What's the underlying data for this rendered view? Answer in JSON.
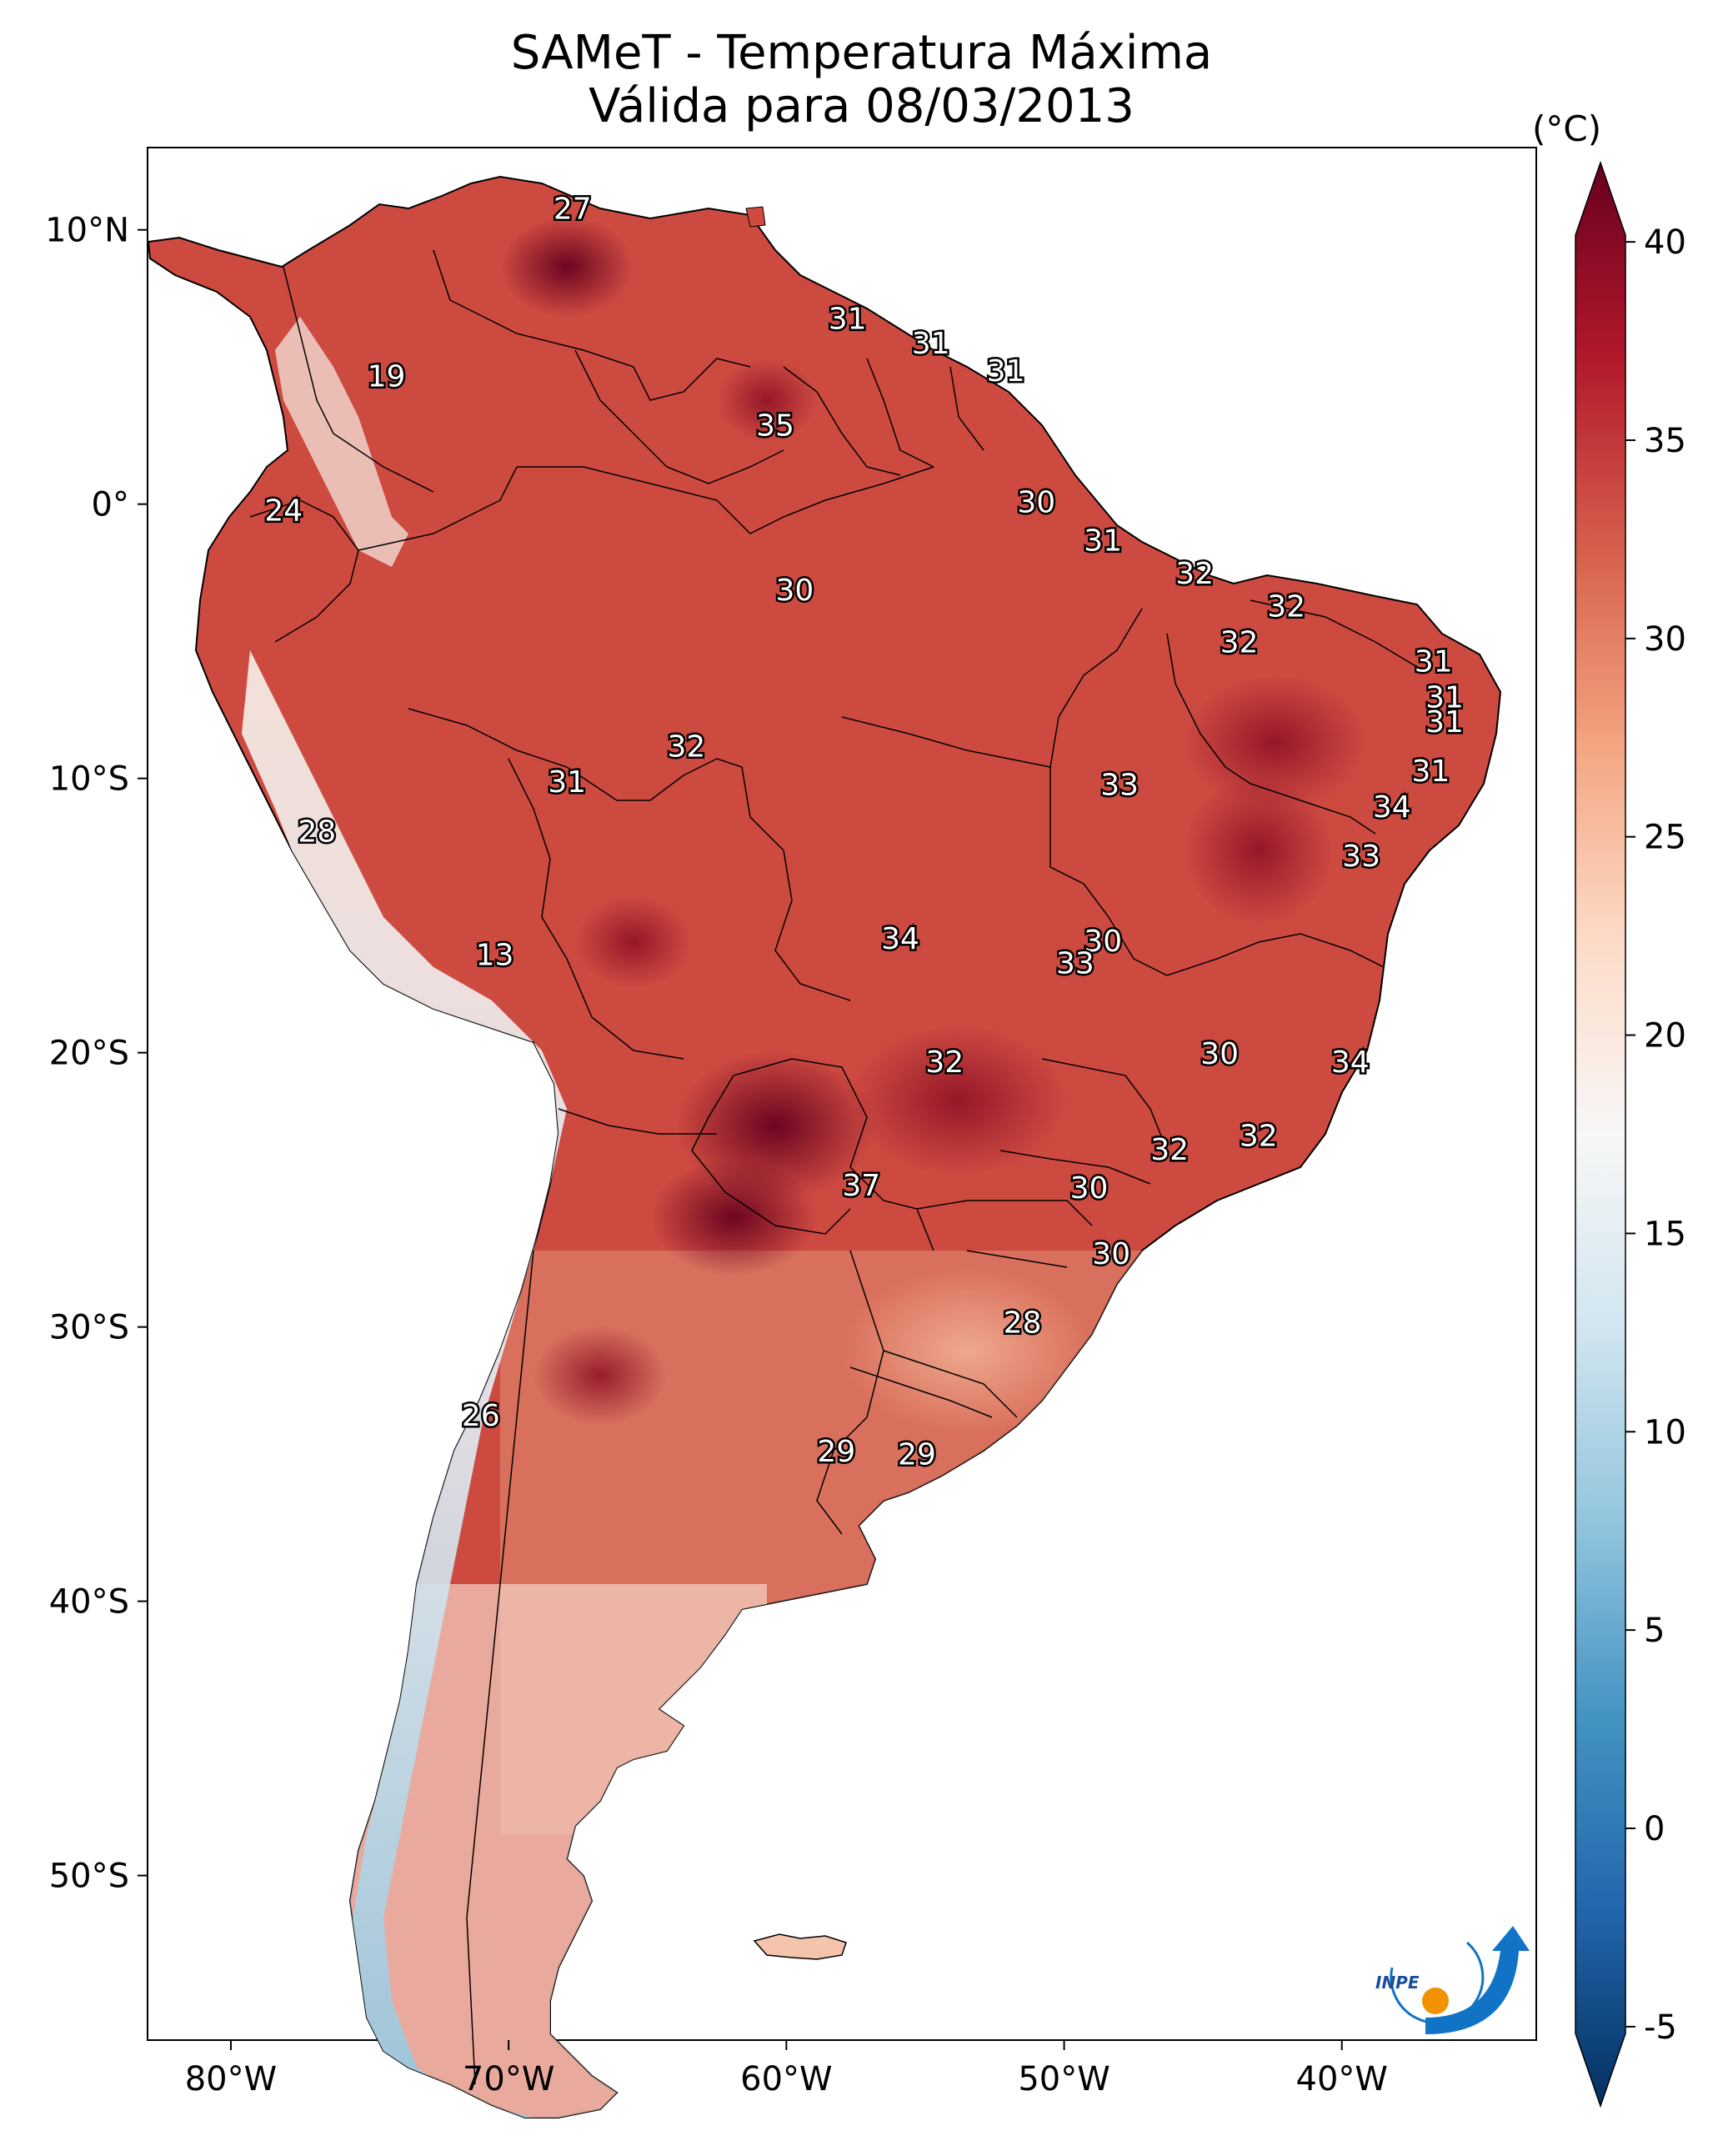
{
  "title": {
    "line1": "SAMeT - Temperatura Máxima",
    "line2": "Válida para 08/03/2013"
  },
  "map": {
    "type": "temperature-map",
    "region": "South America",
    "variable": "Temperatura Máxima",
    "lon_ticks": [
      {
        "value": -80,
        "label": "80°W"
      },
      {
        "value": -70,
        "label": "70°W"
      },
      {
        "value": -60,
        "label": "60°W"
      },
      {
        "value": -50,
        "label": "50°W"
      },
      {
        "value": -40,
        "label": "40°W"
      }
    ],
    "lat_ticks": [
      {
        "value": 10,
        "label": "10°N"
      },
      {
        "value": 0,
        "label": "0°"
      },
      {
        "value": -10,
        "label": "10°S"
      },
      {
        "value": -20,
        "label": "20°S"
      },
      {
        "value": -30,
        "label": "30°S"
      },
      {
        "value": -40,
        "label": "40°S"
      },
      {
        "value": -50,
        "label": "50°S"
      }
    ],
    "lon_range": [
      -83,
      -33
    ],
    "lat_range": [
      -56,
      13
    ],
    "regional_labels": [
      {
        "lon": -67.7,
        "lat": 10.7,
        "label": "27"
      },
      {
        "lon": -57.8,
        "lat": 6.7,
        "label": "31"
      },
      {
        "lon": -54.8,
        "lat": 5.8,
        "label": "31"
      },
      {
        "lon": -52.1,
        "lat": 4.8,
        "label": "31"
      },
      {
        "lon": -74.4,
        "lat": 4.6,
        "label": "19"
      },
      {
        "lon": -60.4,
        "lat": 2.8,
        "label": "35"
      },
      {
        "lon": -51.0,
        "lat": 0.0,
        "label": "30"
      },
      {
        "lon": -78.1,
        "lat": -0.3,
        "label": "24"
      },
      {
        "lon": -48.6,
        "lat": -1.4,
        "label": "31"
      },
      {
        "lon": -59.7,
        "lat": -3.2,
        "label": "30"
      },
      {
        "lon": -45.3,
        "lat": -2.6,
        "label": "32"
      },
      {
        "lon": -42.0,
        "lat": -3.8,
        "label": "32"
      },
      {
        "lon": -43.7,
        "lat": -5.1,
        "label": "32"
      },
      {
        "lon": -36.7,
        "lat": -5.8,
        "label": "31"
      },
      {
        "lon": -36.3,
        "lat": -7.1,
        "label": "31"
      },
      {
        "lon": -36.3,
        "lat": -8.0,
        "label": "31"
      },
      {
        "lon": -36.8,
        "lat": -9.8,
        "label": "31"
      },
      {
        "lon": -63.6,
        "lat": -8.9,
        "label": "32"
      },
      {
        "lon": -67.9,
        "lat": -10.2,
        "label": "31"
      },
      {
        "lon": -48.0,
        "lat": -10.3,
        "label": "33"
      },
      {
        "lon": -38.2,
        "lat": -11.1,
        "label": "34"
      },
      {
        "lon": -76.9,
        "lat": -12.0,
        "label": "28"
      },
      {
        "lon": -39.3,
        "lat": -12.9,
        "label": "33"
      },
      {
        "lon": -55.9,
        "lat": -15.9,
        "label": "34"
      },
      {
        "lon": -48.6,
        "lat": -16.0,
        "label": "30"
      },
      {
        "lon": -49.6,
        "lat": -16.8,
        "label": "33"
      },
      {
        "lon": -70.5,
        "lat": -16.5,
        "label": "13"
      },
      {
        "lon": -44.4,
        "lat": -20.1,
        "label": "30"
      },
      {
        "lon": -39.7,
        "lat": -20.4,
        "label": "34"
      },
      {
        "lon": -54.3,
        "lat": -20.4,
        "label": "32"
      },
      {
        "lon": -43.0,
        "lat": -23.1,
        "label": "32"
      },
      {
        "lon": -46.2,
        "lat": -23.6,
        "label": "32"
      },
      {
        "lon": -57.3,
        "lat": -24.9,
        "label": "37"
      },
      {
        "lon": -49.1,
        "lat": -25.0,
        "label": "30"
      },
      {
        "lon": -48.3,
        "lat": -27.4,
        "label": "30"
      },
      {
        "lon": -51.5,
        "lat": -29.9,
        "label": "28"
      },
      {
        "lon": -71.0,
        "lat": -33.3,
        "label": "26"
      },
      {
        "lon": -58.2,
        "lat": -34.6,
        "label": "29"
      },
      {
        "lon": -55.3,
        "lat": -34.7,
        "label": "29"
      }
    ]
  },
  "colorbar": {
    "unit": "(°C)",
    "min": -7,
    "max": 42,
    "ticks": [
      {
        "value": -5,
        "label": "-5"
      },
      {
        "value": 0,
        "label": "0"
      },
      {
        "value": 5,
        "label": "5"
      },
      {
        "value": 10,
        "label": "10"
      },
      {
        "value": 15,
        "label": "15"
      },
      {
        "value": 20,
        "label": "20"
      },
      {
        "value": 25,
        "label": "25"
      },
      {
        "value": 30,
        "label": "30"
      },
      {
        "value": 35,
        "label": "35"
      },
      {
        "value": 40,
        "label": "40"
      }
    ],
    "colors": [
      "#053061",
      "#2166ac",
      "#4393c3",
      "#92c5de",
      "#d1e5f0",
      "#f7f7f7",
      "#fddbc7",
      "#f4a582",
      "#d6604d",
      "#b2182b",
      "#67001f"
    ]
  },
  "logo": {
    "text": "INPE",
    "colors": {
      "blue": "#1173c6",
      "orange": "#f39200"
    }
  }
}
